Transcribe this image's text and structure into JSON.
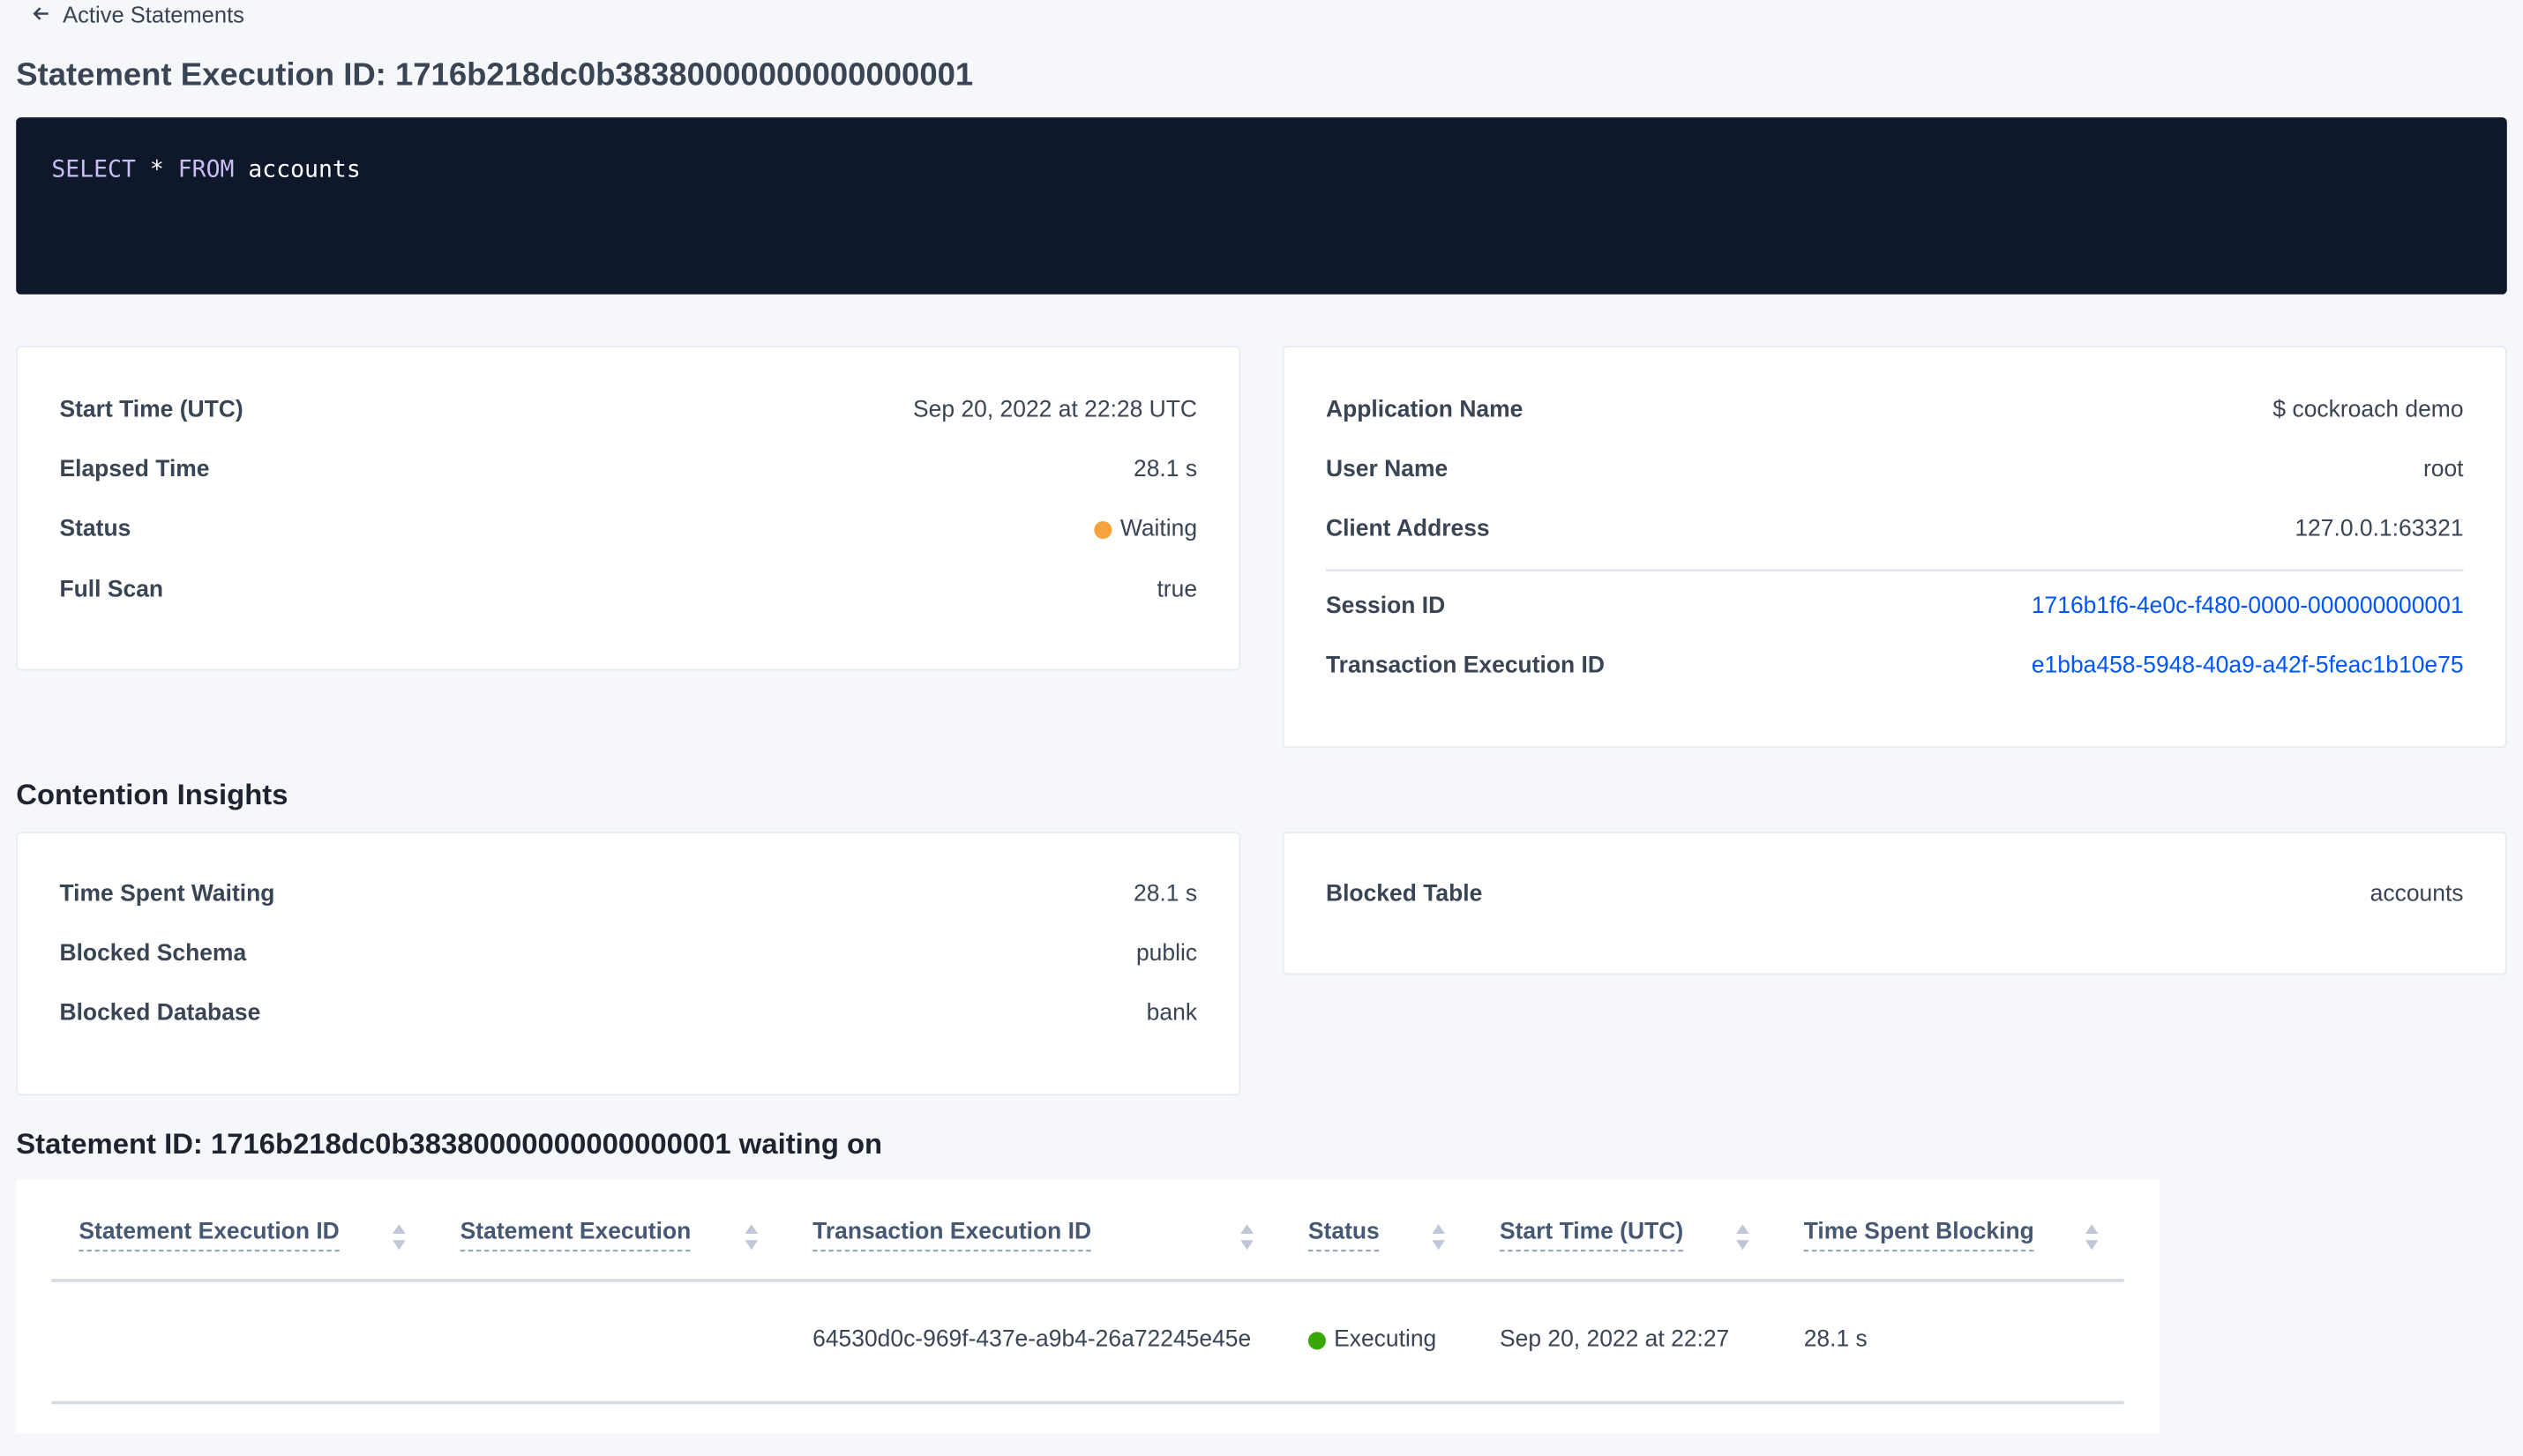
{
  "back_link": {
    "label": "Active Statements",
    "icon": "arrow-left-icon"
  },
  "page_title": "Statement Execution ID: 1716b218dc0b38380000000000000001",
  "sql": {
    "keyword1": "SELECT",
    "star": "*",
    "keyword2": "FROM",
    "table": "accounts",
    "keyword_color": "#c9bcf7"
  },
  "summary_left": [
    {
      "label": "Start Time (UTC)",
      "value": "Sep 20, 2022 at 22:28 UTC"
    },
    {
      "label": "Elapsed Time",
      "value": "28.1 s"
    },
    {
      "label": "Status",
      "value": "Waiting",
      "status_color": "#f5a33b"
    },
    {
      "label": "Full Scan",
      "value": "true"
    }
  ],
  "summary_right": [
    {
      "label": "Application Name",
      "value": "$ cockroach demo"
    },
    {
      "label": "User Name",
      "value": "root"
    },
    {
      "label": "Client Address",
      "value": "127.0.0.1:63321"
    },
    {
      "label": "Session ID",
      "value": "1716b1f6-4e0c-f480-0000-000000000001"
    },
    {
      "label": "Transaction Execution ID",
      "value": "e1bba458-5948-40a9-a42f-5feac1b10e75"
    }
  ],
  "contention": {
    "heading": "Contention Insights",
    "left": [
      {
        "label": "Time Spent Waiting",
        "value": "28.1 s"
      },
      {
        "label": "Blocked Schema",
        "value": "public"
      },
      {
        "label": "Blocked Database",
        "value": "bank"
      }
    ],
    "right": [
      {
        "label": "Blocked Table",
        "value": "accounts"
      }
    ]
  },
  "waiting_table": {
    "heading": "Statement ID: 1716b218dc0b38380000000000000001 waiting on",
    "columns": [
      "Statement Execution ID",
      "Statement Execution",
      "Transaction Execution ID",
      "Status",
      "Start Time (UTC)",
      "Time Spent Blocking"
    ],
    "rows": [
      {
        "statement_execution_id": "",
        "statement_execution": "",
        "transaction_execution_id": "64530d0c-969f-437e-a9b4-26a72245e45e",
        "status": "Executing",
        "status_color": "#37a806",
        "start_time": "Sep 20, 2022 at 22:27",
        "time_spent_blocking": "28.1 s"
      }
    ]
  }
}
